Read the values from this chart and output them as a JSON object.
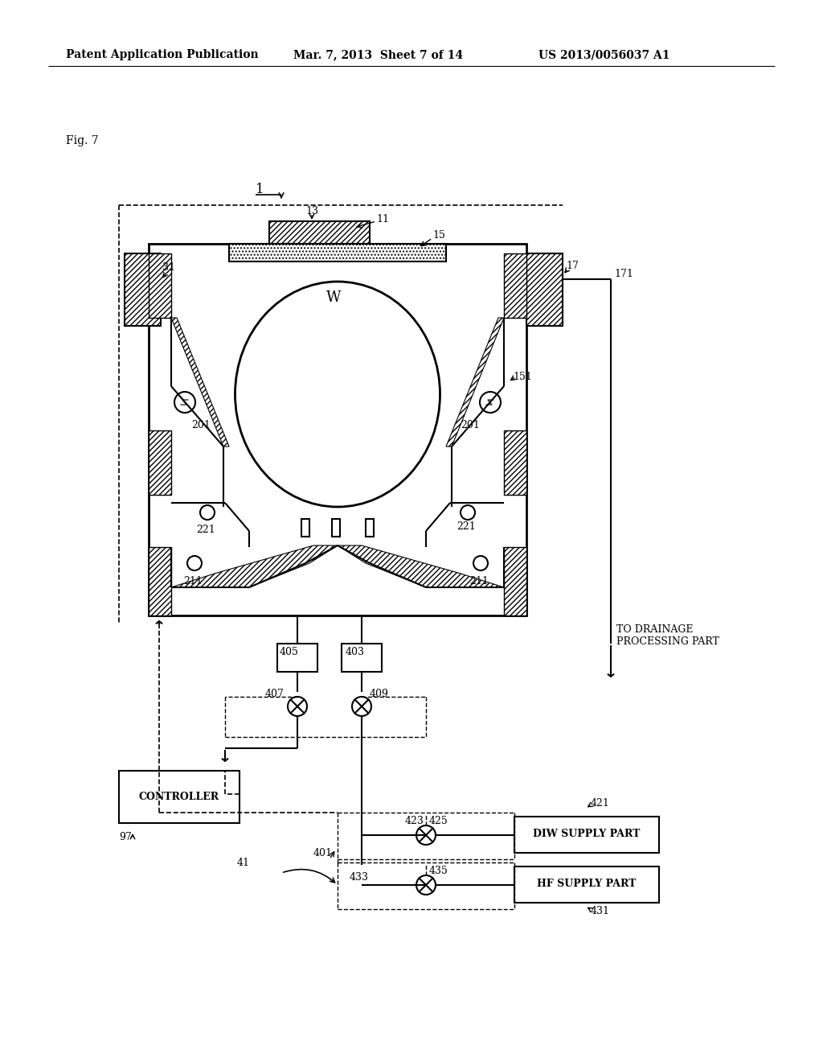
{
  "bg_color": "#ffffff",
  "header_left": "Patent Application Publication",
  "header_mid": "Mar. 7, 2013  Sheet 7 of 14",
  "header_right": "US 2013/0056037 A1",
  "fig_label": "Fig. 7",
  "drainage_text": "TO DRAINAGE\nPROCESSING PART",
  "controller_text": "CONTROLLER",
  "diw_text": "DIW SUPPLY PART",
  "hf_text": "HF SUPPLY PART"
}
